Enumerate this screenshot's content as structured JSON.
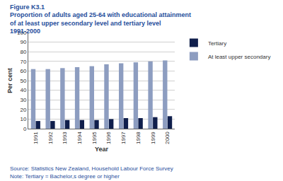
{
  "chart_data": {
    "type": "bar",
    "title": "Proportion of adults aged 25-64 with educational attainment of at least upper secondary level and tertiary level 1991-2000",
    "annotations": [
      "Figure K3.1",
      "Source: Statistics New Zealand, Household Labour Force Survey",
      "Note: Tertiary = Bachelor,s degree or higher"
    ],
    "x_label": "Year",
    "y_label": "Per cent",
    "categories": [
      "1991",
      "1992",
      "1993",
      "1994",
      "1995",
      "1996",
      "1997",
      "1998",
      "1999",
      "2000"
    ],
    "series": [
      {
        "name": "At least upper secondary",
        "color": "#8d9dc0",
        "values": [
          62,
          62,
          63,
          64,
          65,
          67,
          68,
          69,
          70,
          71
        ]
      },
      {
        "name": "Tertiary",
        "color": "#101f4c",
        "values": [
          8,
          8,
          9,
          9,
          9,
          10,
          11,
          11,
          12,
          13
        ]
      }
    ],
    "ylim": [
      0,
      100
    ],
    "yticks": [
      0,
      10,
      20,
      30,
      40,
      50,
      60,
      70,
      80,
      90,
      100
    ],
    "grid": true,
    "legend": "right"
  }
}
